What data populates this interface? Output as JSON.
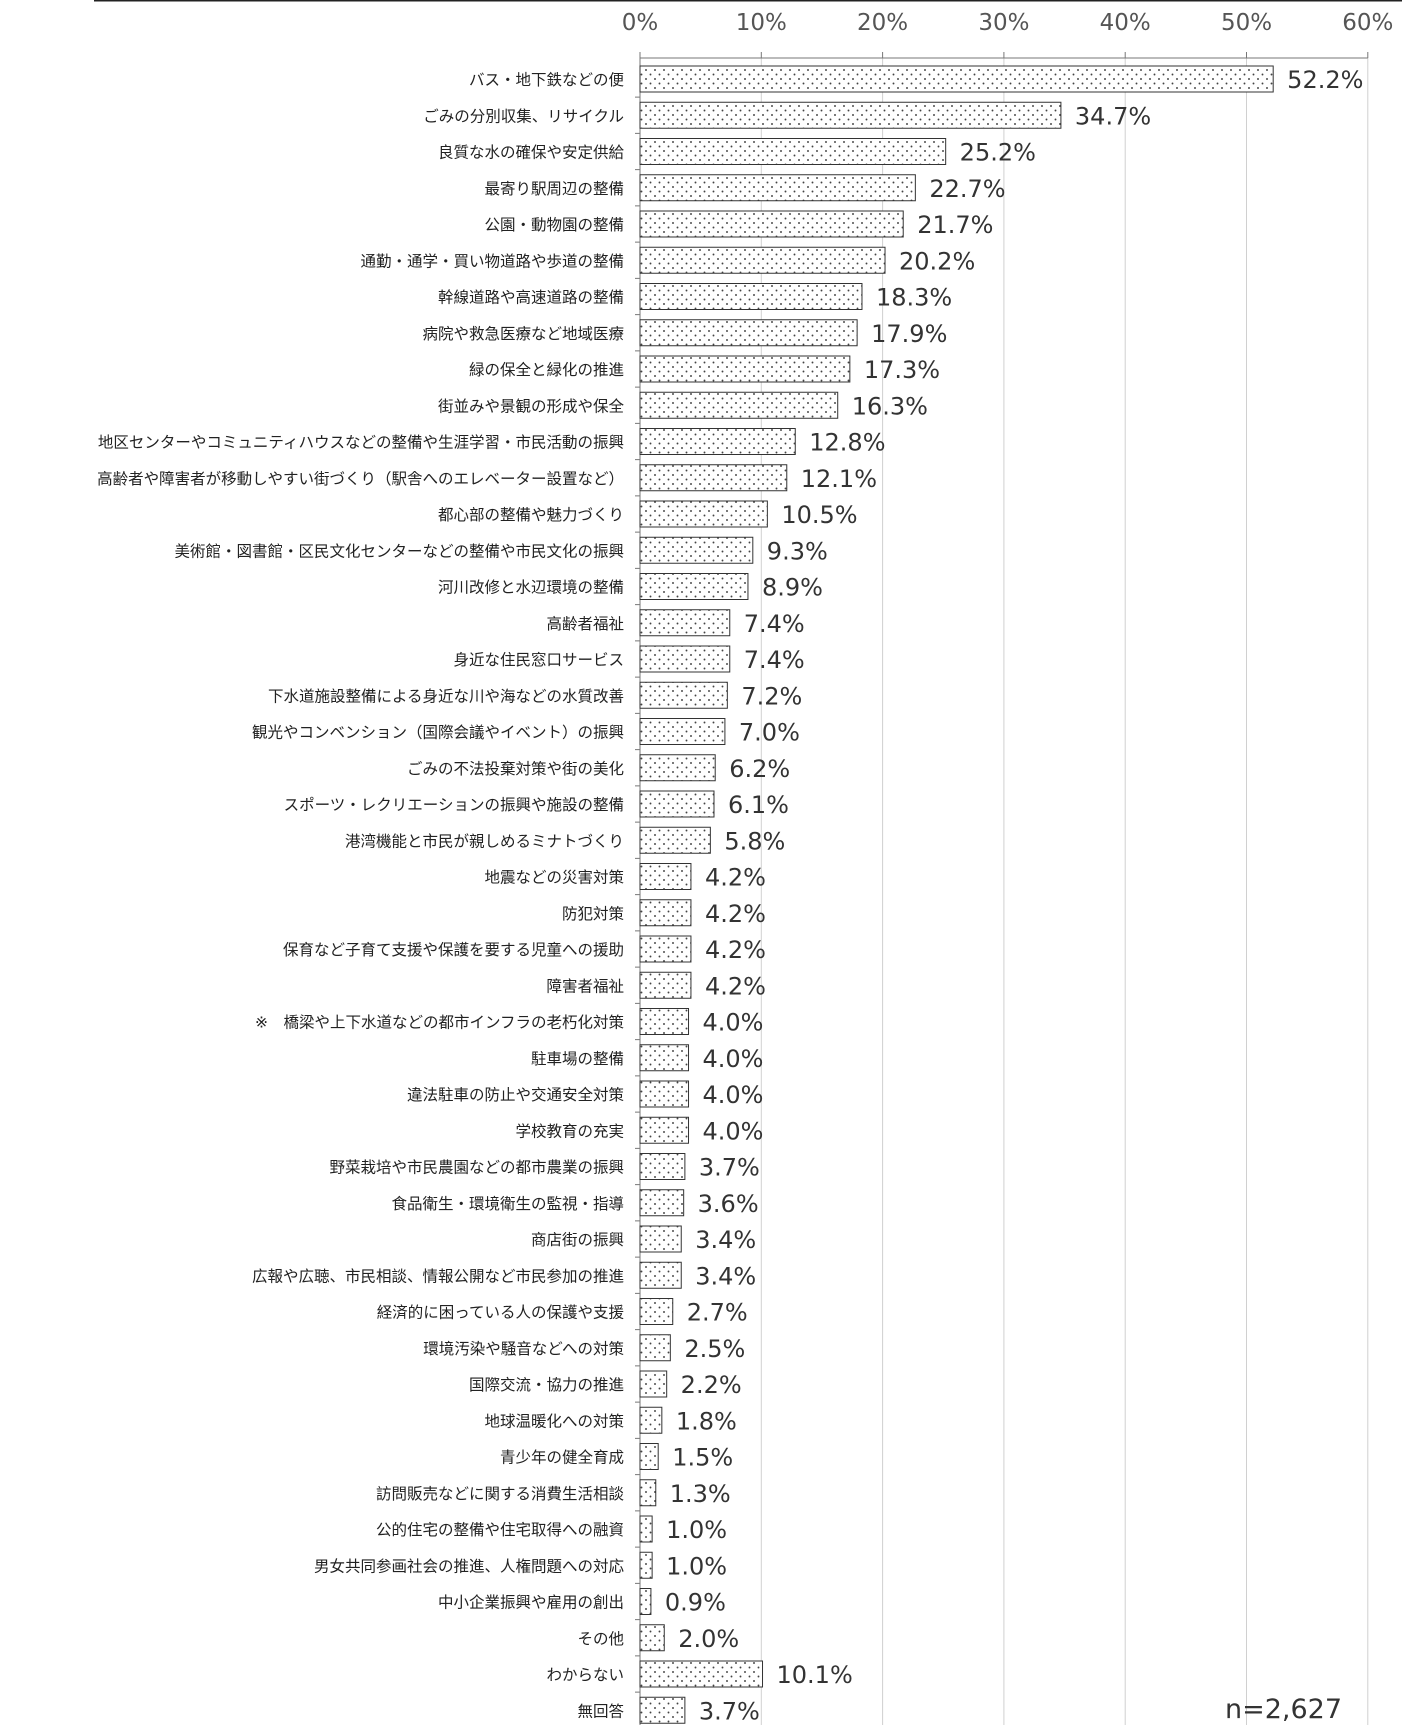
{
  "chart_data": {
    "type": "bar",
    "orientation": "horizontal",
    "categories": [
      "バス・地下鉄などの便",
      "ごみの分別収集、リサイクル",
      "良質な水の確保や安定供給",
      "最寄り駅周辺の整備",
      "公園・動物園の整備",
      "通勤・通学・買い物道路や歩道の整備",
      "幹線道路や高速道路の整備",
      "病院や救急医療など地域医療",
      "緑の保全と緑化の推進",
      "街並みや景観の形成や保全",
      "地区センターやコミュニティハウスなどの整備や生涯学習・市民活動の振興",
      "高齢者や障害者が移動しやすい街づくり（駅舎へのエレベーター設置など）",
      "都心部の整備や魅力づくり",
      "美術館・図書館・区民文化センターなどの整備や市民文化の振興",
      "河川改修と水辺環境の整備",
      "高齢者福祉",
      "身近な住民窓口サービス",
      "下水道施設整備による身近な川や海などの水質改善",
      "観光やコンベンション（国際会議やイベント）の振興",
      "ごみの不法投棄対策や街の美化",
      "スポーツ・レクリエーションの振興や施設の整備",
      "港湾機能と市民が親しめるミナトづくり",
      "地震などの災害対策",
      "防犯対策",
      "保育など子育て支援や保護を要する児童への援助",
      "障害者福祉",
      "※　橋梁や上下水道などの都市インフラの老朽化対策",
      "駐車場の整備",
      "違法駐車の防止や交通安全対策",
      "学校教育の充実",
      "野菜栽培や市民農園などの都市農業の振興",
      "食品衛生・環境衛生の監視・指導",
      "商店街の振興",
      "広報や広聴、市民相談、情報公開など市民参加の推進",
      "経済的に困っている人の保護や支援",
      "環境汚染や騒音などへの対策",
      "国際交流・協力の推進",
      "地球温暖化への対策",
      "青少年の健全育成",
      "訪問販売などに関する消費生活相談",
      "公的住宅の整備や住宅取得への融資",
      "男女共同参画社会の推進、人権問題への対応",
      "中小企業振興や雇用の創出",
      "その他",
      "わからない",
      "無回答"
    ],
    "values": [
      52.2,
      34.7,
      25.2,
      22.7,
      21.7,
      20.2,
      18.3,
      17.9,
      17.3,
      16.3,
      12.8,
      12.1,
      10.5,
      9.3,
      8.9,
      7.4,
      7.4,
      7.2,
      7.0,
      6.2,
      6.1,
      5.8,
      4.2,
      4.2,
      4.2,
      4.2,
      4.0,
      4.0,
      4.0,
      4.0,
      3.7,
      3.6,
      3.4,
      3.4,
      2.7,
      2.5,
      2.2,
      1.8,
      1.5,
      1.3,
      1.0,
      1.0,
      0.9,
      2.0,
      10.1,
      3.7
    ],
    "value_labels": [
      "52.2%",
      "34.7%",
      "25.2%",
      "22.7%",
      "21.7%",
      "20.2%",
      "18.3%",
      "17.9%",
      "17.3%",
      "16.3%",
      "12.8%",
      "12.1%",
      "10.5%",
      "9.3%",
      "8.9%",
      "7.4%",
      "7.4%",
      "7.2%",
      "7.0%",
      "6.2%",
      "6.1%",
      "5.8%",
      "4.2%",
      "4.2%",
      "4.2%",
      "4.2%",
      "4.0%",
      "4.0%",
      "4.0%",
      "4.0%",
      "3.7%",
      "3.6%",
      "3.4%",
      "3.4%",
      "2.7%",
      "2.5%",
      "2.2%",
      "1.8%",
      "1.5%",
      "1.3%",
      "1.0%",
      "1.0%",
      "0.9%",
      "2.0%",
      "10.1%",
      "3.7%"
    ],
    "xlim": [
      0,
      60
    ],
    "x_ticks": [
      0,
      10,
      20,
      30,
      40,
      50,
      60
    ],
    "x_tick_labels": [
      "0%",
      "10%",
      "20%",
      "30%",
      "40%",
      "50%",
      "60%"
    ],
    "axis_position": "top",
    "grid": true,
    "bar_fill": "dotted",
    "colors": {
      "bar_stroke": "#333333",
      "dot": "#444444",
      "grid": "#d0d0d0",
      "axis": "#777777",
      "top_rule": "#222222"
    },
    "note": "n=2,627"
  }
}
